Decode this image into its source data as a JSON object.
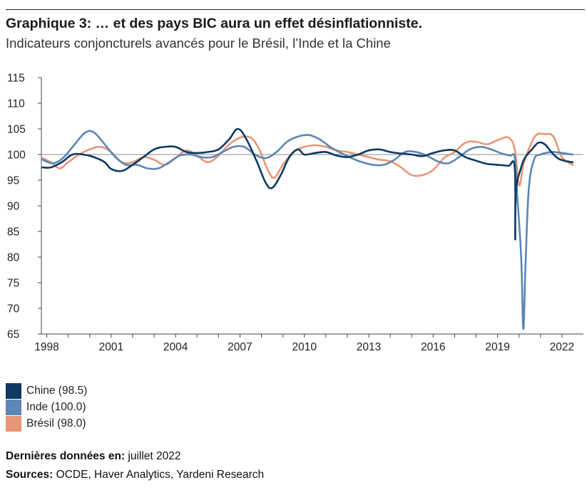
{
  "header": {
    "title": "Graphique 3: … et des pays BIC aura un effet désinflationniste.",
    "subtitle": "Indicateurs conjoncturels avancés pour le Brésil, l’Inde et la Chine"
  },
  "legend": [
    {
      "label": "Chine (98.5)",
      "color": "#0d3a63"
    },
    {
      "label": "Inde (100.0)",
      "color": "#5b86b5"
    },
    {
      "label": "Brésil (98.0)",
      "color": "#e99677"
    }
  ],
  "footer": {
    "last_data_label": "Dernières données en:",
    "last_data_value": "juillet 2022",
    "sources_label": "Sources:",
    "sources_value": "OCDE, Haver Analytics, Yardeni Research"
  },
  "chart_data": {
    "type": "line",
    "ylim": [
      65,
      115
    ],
    "yticks": [
      115,
      110,
      105,
      100,
      95,
      90,
      85,
      80,
      75,
      70,
      65
    ],
    "xlim": [
      1997.75,
      2023.0
    ],
    "xticks": [
      "1998",
      "2001",
      "2004",
      "2007",
      "2010",
      "2013",
      "2016",
      "2019",
      "2022"
    ],
    "reference_line": 100,
    "series": [
      {
        "name": "Chine (98.5)",
        "color": "#0d3a63",
        "points": [
          [
            1997.8,
            97.5
          ],
          [
            1998.2,
            97.5
          ],
          [
            1998.7,
            98.5
          ],
          [
            1999.2,
            100.0
          ],
          [
            1999.7,
            100.0
          ],
          [
            2000.2,
            99.5
          ],
          [
            2000.7,
            98.5
          ],
          [
            2001.0,
            97.2
          ],
          [
            2001.5,
            96.8
          ],
          [
            2002.0,
            98.0
          ],
          [
            2002.5,
            99.5
          ],
          [
            2003.0,
            101.0
          ],
          [
            2003.5,
            101.5
          ],
          [
            2004.0,
            101.5
          ],
          [
            2004.5,
            100.5
          ],
          [
            2005.0,
            100.3
          ],
          [
            2005.5,
            100.5
          ],
          [
            2006.0,
            101.0
          ],
          [
            2006.5,
            103.0
          ],
          [
            2006.9,
            105.0
          ],
          [
            2007.3,
            103.0
          ],
          [
            2007.8,
            98.5
          ],
          [
            2008.2,
            94.5
          ],
          [
            2008.5,
            93.5
          ],
          [
            2008.9,
            96.0
          ],
          [
            2009.3,
            99.5
          ],
          [
            2009.7,
            101.0
          ],
          [
            2010.0,
            100.0
          ],
          [
            2010.5,
            100.3
          ],
          [
            2011.0,
            100.5
          ],
          [
            2011.5,
            99.8
          ],
          [
            2012.0,
            99.5
          ],
          [
            2012.5,
            100.0
          ],
          [
            2013.0,
            100.8
          ],
          [
            2013.5,
            101.0
          ],
          [
            2014.0,
            100.5
          ],
          [
            2014.5,
            100.2
          ],
          [
            2015.0,
            100.0
          ],
          [
            2015.5,
            99.7
          ],
          [
            2016.0,
            100.3
          ],
          [
            2016.5,
            100.8
          ],
          [
            2017.0,
            100.8
          ],
          [
            2017.5,
            99.5
          ],
          [
            2018.0,
            98.8
          ],
          [
            2018.5,
            98.2
          ],
          [
            2019.0,
            98.0
          ],
          [
            2019.5,
            97.8
          ],
          [
            2019.8,
            97.5
          ],
          [
            2019.82,
            83.5
          ],
          [
            2019.86,
            93.0
          ],
          [
            2020.1,
            97.5
          ],
          [
            2020.3,
            99.5
          ],
          [
            2020.6,
            101.0
          ],
          [
            2020.9,
            102.3
          ],
          [
            2021.2,
            102.0
          ],
          [
            2021.5,
            100.5
          ],
          [
            2021.8,
            99.3
          ],
          [
            2022.1,
            98.8
          ],
          [
            2022.5,
            98.5
          ]
        ]
      },
      {
        "name": "Inde (100.0)",
        "color": "#5b86b5",
        "points": [
          [
            1997.8,
            99.0
          ],
          [
            1998.3,
            98.3
          ],
          [
            1998.8,
            99.5
          ],
          [
            1999.3,
            102.0
          ],
          [
            1999.8,
            104.3
          ],
          [
            2000.2,
            104.3
          ],
          [
            2000.7,
            102.0
          ],
          [
            2001.2,
            99.5
          ],
          [
            2001.7,
            98.0
          ],
          [
            2002.2,
            98.0
          ],
          [
            2002.7,
            97.3
          ],
          [
            2003.2,
            97.3
          ],
          [
            2003.7,
            98.5
          ],
          [
            2004.2,
            99.8
          ],
          [
            2004.7,
            100.0
          ],
          [
            2005.2,
            99.5
          ],
          [
            2005.7,
            99.5
          ],
          [
            2006.2,
            100.5
          ],
          [
            2006.7,
            101.5
          ],
          [
            2007.2,
            101.5
          ],
          [
            2007.7,
            100.0
          ],
          [
            2008.2,
            99.3
          ],
          [
            2008.7,
            100.5
          ],
          [
            2009.2,
            102.5
          ],
          [
            2009.7,
            103.5
          ],
          [
            2010.2,
            103.8
          ],
          [
            2010.7,
            103.0
          ],
          [
            2011.2,
            101.5
          ],
          [
            2011.7,
            100.3
          ],
          [
            2012.2,
            99.3
          ],
          [
            2012.7,
            98.5
          ],
          [
            2013.2,
            98.0
          ],
          [
            2013.7,
            98.0
          ],
          [
            2014.2,
            99.0
          ],
          [
            2014.7,
            100.5
          ],
          [
            2015.2,
            100.5
          ],
          [
            2015.7,
            99.8
          ],
          [
            2016.2,
            98.7
          ],
          [
            2016.7,
            98.3
          ],
          [
            2017.2,
            99.5
          ],
          [
            2017.7,
            101.0
          ],
          [
            2018.2,
            101.5
          ],
          [
            2018.7,
            101.0
          ],
          [
            2019.2,
            100.2
          ],
          [
            2019.6,
            99.8
          ],
          [
            2019.8,
            99.5
          ],
          [
            2019.9,
            93.0
          ],
          [
            2020.1,
            80.0
          ],
          [
            2020.2,
            66.0
          ],
          [
            2020.3,
            78.0
          ],
          [
            2020.45,
            93.0
          ],
          [
            2020.7,
            99.0
          ],
          [
            2021.0,
            100.0
          ],
          [
            2021.5,
            100.5
          ],
          [
            2022.0,
            100.3
          ],
          [
            2022.5,
            100.0
          ]
        ]
      },
      {
        "name": "Brésil (98.0)",
        "color": "#e99677",
        "points": [
          [
            1997.8,
            99.3
          ],
          [
            1998.2,
            98.5
          ],
          [
            1998.6,
            97.3
          ],
          [
            1999.0,
            98.5
          ],
          [
            1999.5,
            100.0
          ],
          [
            2000.0,
            101.0
          ],
          [
            2000.5,
            101.5
          ],
          [
            2001.0,
            100.5
          ],
          [
            2001.5,
            98.5
          ],
          [
            2002.0,
            98.5
          ],
          [
            2002.5,
            99.5
          ],
          [
            2003.0,
            99.0
          ],
          [
            2003.5,
            98.0
          ],
          [
            2004.0,
            99.3
          ],
          [
            2004.5,
            100.8
          ],
          [
            2005.0,
            99.8
          ],
          [
            2005.5,
            98.5
          ],
          [
            2006.0,
            99.8
          ],
          [
            2006.5,
            102.0
          ],
          [
            2007.0,
            103.3
          ],
          [
            2007.5,
            103.3
          ],
          [
            2007.9,
            101.0
          ],
          [
            2008.3,
            97.0
          ],
          [
            2008.6,
            95.5
          ],
          [
            2009.0,
            98.0
          ],
          [
            2009.5,
            100.5
          ],
          [
            2010.0,
            101.5
          ],
          [
            2010.5,
            101.8
          ],
          [
            2011.0,
            101.5
          ],
          [
            2011.5,
            100.8
          ],
          [
            2012.0,
            100.5
          ],
          [
            2012.5,
            100.0
          ],
          [
            2013.0,
            99.5
          ],
          [
            2013.5,
            99.0
          ],
          [
            2014.0,
            98.7
          ],
          [
            2014.5,
            97.5
          ],
          [
            2015.0,
            96.0
          ],
          [
            2015.5,
            96.0
          ],
          [
            2016.0,
            97.0
          ],
          [
            2016.5,
            99.3
          ],
          [
            2017.0,
            100.5
          ],
          [
            2017.5,
            102.3
          ],
          [
            2018.0,
            102.5
          ],
          [
            2018.5,
            102.0
          ],
          [
            2019.0,
            102.8
          ],
          [
            2019.5,
            103.3
          ],
          [
            2019.8,
            101.0
          ],
          [
            2020.0,
            94.0
          ],
          [
            2020.2,
            98.0
          ],
          [
            2020.5,
            101.5
          ],
          [
            2020.8,
            103.8
          ],
          [
            2021.2,
            104.0
          ],
          [
            2021.6,
            103.5
          ],
          [
            2022.0,
            99.5
          ],
          [
            2022.5,
            98.0
          ]
        ]
      }
    ]
  }
}
